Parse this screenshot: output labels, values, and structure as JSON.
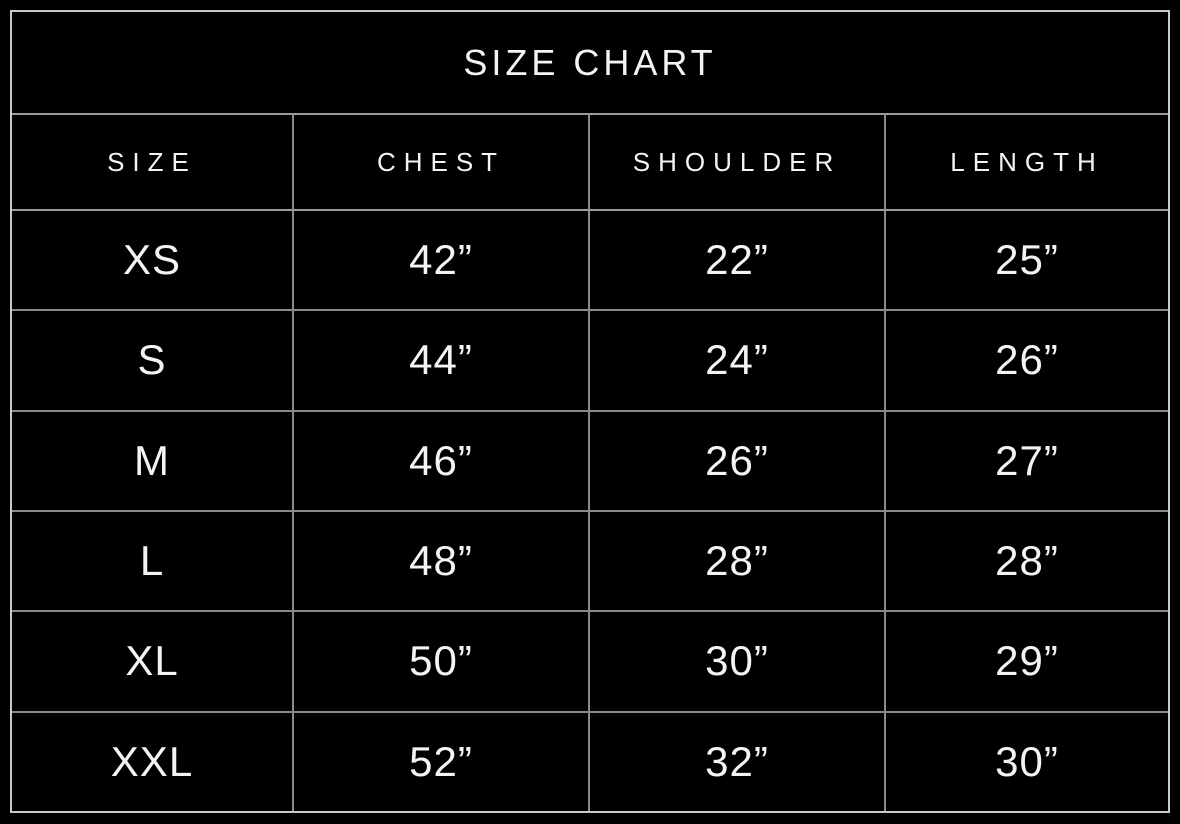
{
  "chart_data": {
    "type": "table",
    "title": "SIZE CHART",
    "columns": [
      "SIZE",
      "CHEST",
      "SHOULDER",
      "LENGTH"
    ],
    "rows": [
      [
        "XS",
        "42”",
        "22”",
        "25”"
      ],
      [
        "S",
        "44”",
        "24”",
        "26”"
      ],
      [
        "M",
        "46”",
        "26”",
        "27”"
      ],
      [
        "L",
        "48”",
        "28”",
        "28”"
      ],
      [
        "XL",
        "50”",
        "30”",
        "29”"
      ],
      [
        "XXL",
        "52”",
        "32”",
        "30”"
      ]
    ],
    "units": "inches",
    "layout": {
      "background_color": "#000000",
      "text_color": "#f4f4f4",
      "grid_line_color": "#8a8a8a",
      "outer_border_color": "#c9c9c9"
    }
  }
}
